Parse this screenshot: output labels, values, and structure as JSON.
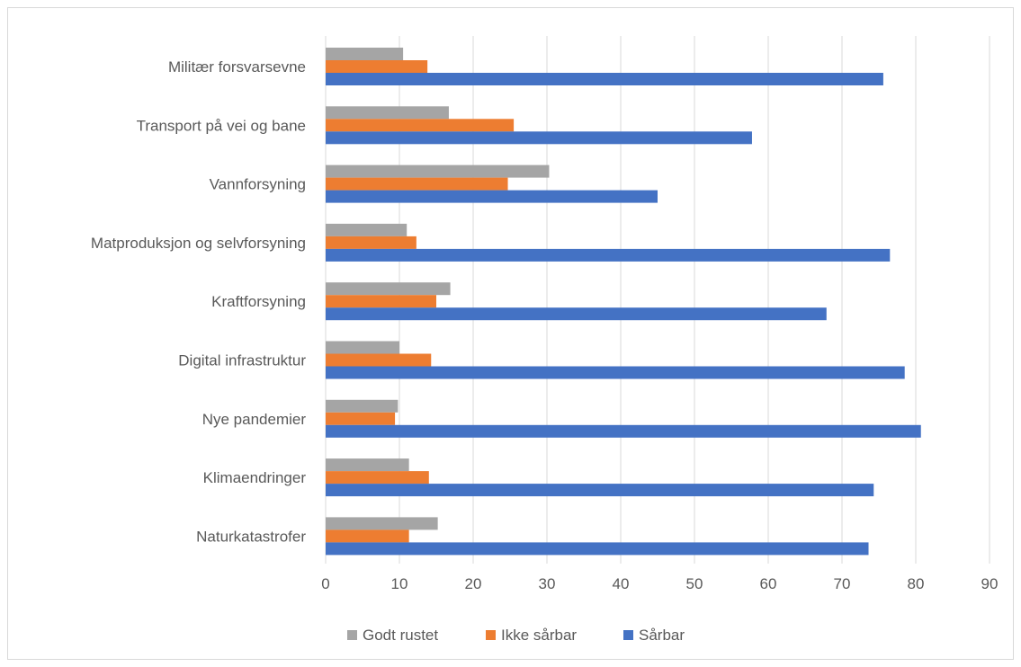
{
  "chart_data": {
    "type": "bar",
    "orientation": "horizontal",
    "categories": [
      "Militær forsvarsevne",
      "Transport på vei og bane",
      "Vannforsyning",
      "Matproduksjon og selvforsyning",
      "Kraftforsyning",
      "Digital infrastruktur",
      "Nye pandemier",
      "Klimaendringer",
      "Naturkatastrofer"
    ],
    "series": [
      {
        "name": "Godt rustet",
        "color": "#a5a5a5",
        "values": [
          10.5,
          16.7,
          30.3,
          11.0,
          16.9,
          10.0,
          9.8,
          11.3,
          15.2
        ]
      },
      {
        "name": "Ikke sårbar",
        "color": "#ed7d31",
        "values": [
          13.8,
          25.5,
          24.7,
          12.3,
          15.0,
          14.3,
          9.4,
          14.0,
          11.3
        ]
      },
      {
        "name": "Sårbar",
        "color": "#4472c4",
        "values": [
          75.6,
          57.8,
          45.0,
          76.5,
          67.9,
          78.5,
          80.7,
          74.3,
          73.6
        ]
      }
    ],
    "xlim": [
      0,
      90
    ],
    "ticks": [
      "0",
      "10",
      "20",
      "30",
      "40",
      "50",
      "60",
      "70",
      "80",
      "90"
    ],
    "grid": true,
    "legend": "bottom",
    "title": "",
    "xlabel": "",
    "ylabel": ""
  }
}
